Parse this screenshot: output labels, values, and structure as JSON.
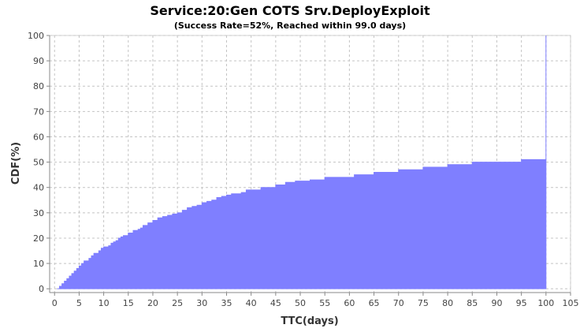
{
  "chart_data": {
    "type": "area",
    "title": "Service:20:Gen COTS Srv.DeployExploit",
    "subtitle": "(Success Rate=52%, Reached within 99.0 days)",
    "xlabel": "TTC(days)",
    "ylabel": "CDF(%)",
    "xlim": [
      -1,
      105
    ],
    "ylim": [
      -1.5,
      100
    ],
    "x_ticks": [
      0,
      5,
      10,
      15,
      20,
      25,
      30,
      35,
      40,
      45,
      50,
      55,
      60,
      65,
      70,
      75,
      80,
      85,
      90,
      95,
      100,
      105
    ],
    "y_ticks": [
      0,
      10,
      20,
      30,
      40,
      50,
      60,
      70,
      80,
      90,
      100
    ],
    "grid": true,
    "fill_color": "#7f7fff",
    "series": [
      {
        "step": true,
        "x": [
          0.5,
          1,
          1.5,
          2,
          2.5,
          3,
          3.5,
          4,
          4.5,
          5,
          5.5,
          6,
          7,
          7.5,
          8,
          9,
          9.5,
          10,
          11,
          11.5,
          12,
          12.5,
          13,
          13.5,
          14,
          15,
          16,
          17,
          17.5,
          18,
          19,
          20,
          21,
          22,
          23,
          24,
          25,
          26,
          27,
          28,
          29,
          30,
          31,
          32,
          33,
          34,
          35,
          36,
          38,
          39,
          42,
          45,
          47,
          49,
          52,
          55,
          61,
          65,
          70,
          75,
          80,
          85,
          95,
          99.5,
          100
        ],
        "y": [
          0,
          1,
          2,
          3,
          4,
          5,
          6,
          7,
          8,
          9,
          10,
          11,
          12,
          13,
          14,
          15,
          16,
          16.5,
          17,
          18,
          18.5,
          19,
          20,
          20.5,
          21,
          22,
          23,
          23.5,
          24,
          25,
          26,
          27,
          28,
          28.5,
          29,
          29.5,
          30,
          31,
          32,
          32.5,
          33,
          34,
          34.5,
          35,
          36,
          36.5,
          37,
          37.5,
          38,
          39,
          40,
          41,
          42,
          42.5,
          43,
          44,
          45,
          46,
          47,
          48,
          49,
          50,
          51,
          51,
          100
        ]
      }
    ]
  }
}
